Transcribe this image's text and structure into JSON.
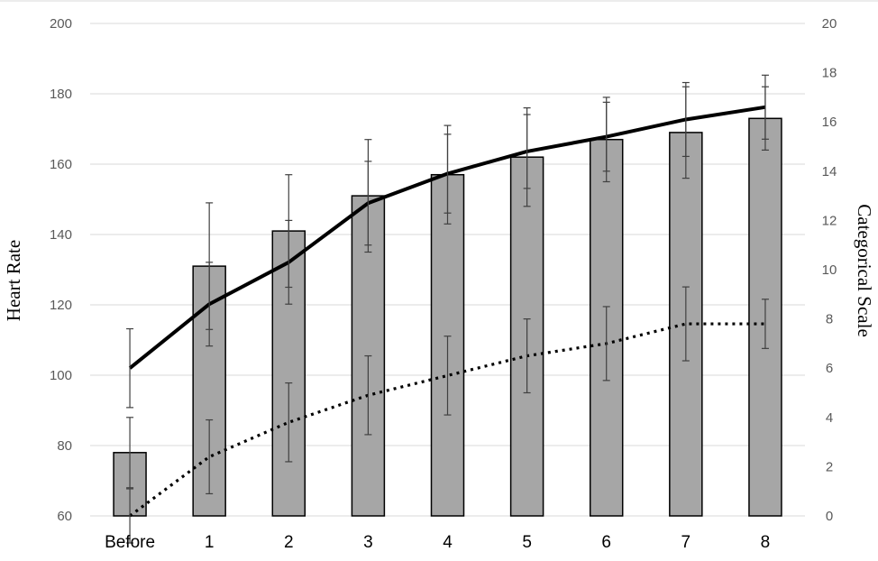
{
  "chart_data": {
    "type": "bar",
    "title": "",
    "ylabel": "Heart Rate",
    "y2label": "Categorical Scale",
    "categories": [
      "Before",
      "1",
      "2",
      "3",
      "4",
      "5",
      "6",
      "7",
      "8"
    ],
    "ylim": [
      60,
      200
    ],
    "y2lim": [
      0,
      20
    ],
    "yticks": [
      60,
      80,
      100,
      120,
      140,
      160,
      180,
      200
    ],
    "y2ticks": [
      0,
      2,
      4,
      6,
      8,
      10,
      12,
      14,
      16,
      18,
      20
    ],
    "grid": true,
    "legend": "none",
    "series": [
      {
        "kind": "bar",
        "axis": "left",
        "values": [
          78,
          131,
          141,
          151,
          157,
          162,
          167,
          169,
          173
        ],
        "error": [
          10,
          18,
          16,
          16,
          14,
          14,
          12,
          13,
          9
        ]
      },
      {
        "kind": "line",
        "style": "solid",
        "axis": "right",
        "values": [
          6.0,
          8.6,
          10.3,
          12.7,
          13.9,
          14.8,
          15.4,
          16.1,
          16.6
        ],
        "error": [
          1.6,
          1.7,
          1.7,
          1.7,
          1.6,
          1.5,
          1.4,
          1.5,
          1.3
        ]
      },
      {
        "kind": "line",
        "style": "dotted",
        "axis": "right",
        "values": [
          0.0,
          2.4,
          3.8,
          4.9,
          5.7,
          6.5,
          7.0,
          7.8,
          7.8
        ],
        "error": [
          1.1,
          1.5,
          1.6,
          1.6,
          1.6,
          1.5,
          1.5,
          1.5,
          1.0
        ]
      }
    ],
    "colors": {
      "bar_fill": "#a6a6a6",
      "bar_stroke": "#000000",
      "line": "#000000",
      "error_bar": "#404040",
      "grid": "#d9d9d9",
      "tick_text": "#595959"
    }
  }
}
